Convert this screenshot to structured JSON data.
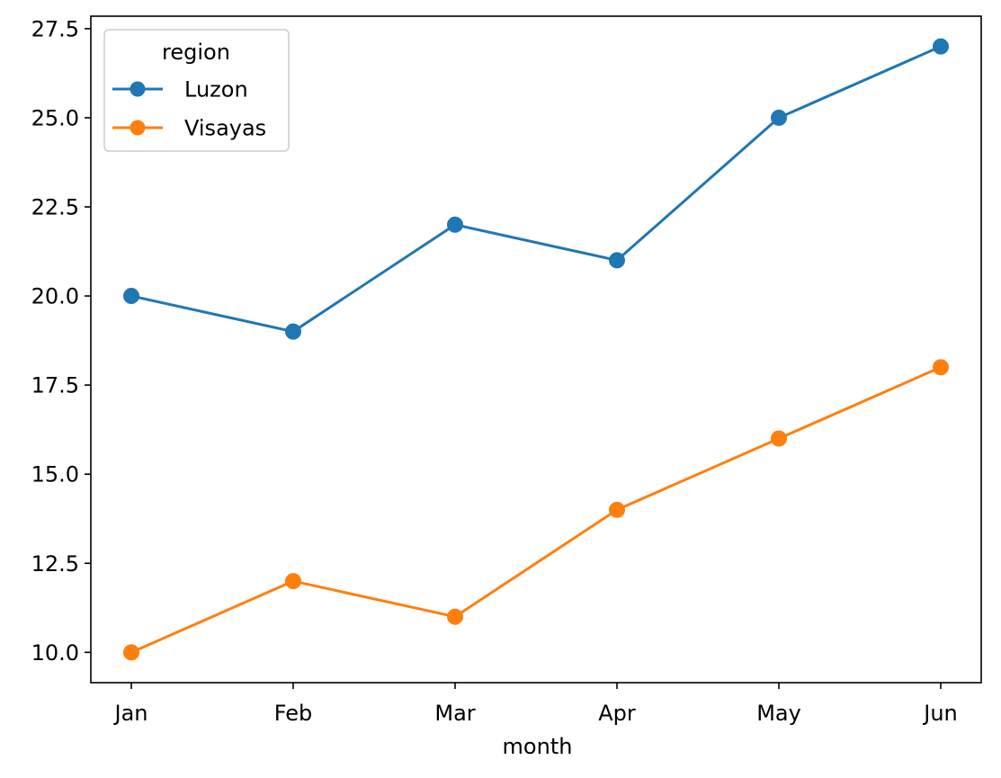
{
  "chart_data": {
    "type": "line",
    "xlabel": "month",
    "ylabel": "",
    "categories": [
      "Jan",
      "Feb",
      "Mar",
      "Apr",
      "May",
      "Jun"
    ],
    "ylim": [
      9.15,
      27.85
    ],
    "yticks": [
      "10.0",
      "12.5",
      "15.0",
      "17.5",
      "20.0",
      "22.5",
      "25.0",
      "27.5"
    ],
    "grid": false,
    "legend": {
      "title": "region",
      "placement": "upper left"
    },
    "series": [
      {
        "name": "Luzon",
        "values": [
          20,
          19,
          22,
          21,
          25,
          27
        ],
        "color": "#1f77b4",
        "marker": "circle"
      },
      {
        "name": "Visayas",
        "values": [
          10,
          12,
          11,
          14,
          16,
          18
        ],
        "color": "#ff7f0e",
        "marker": "circle"
      }
    ]
  }
}
